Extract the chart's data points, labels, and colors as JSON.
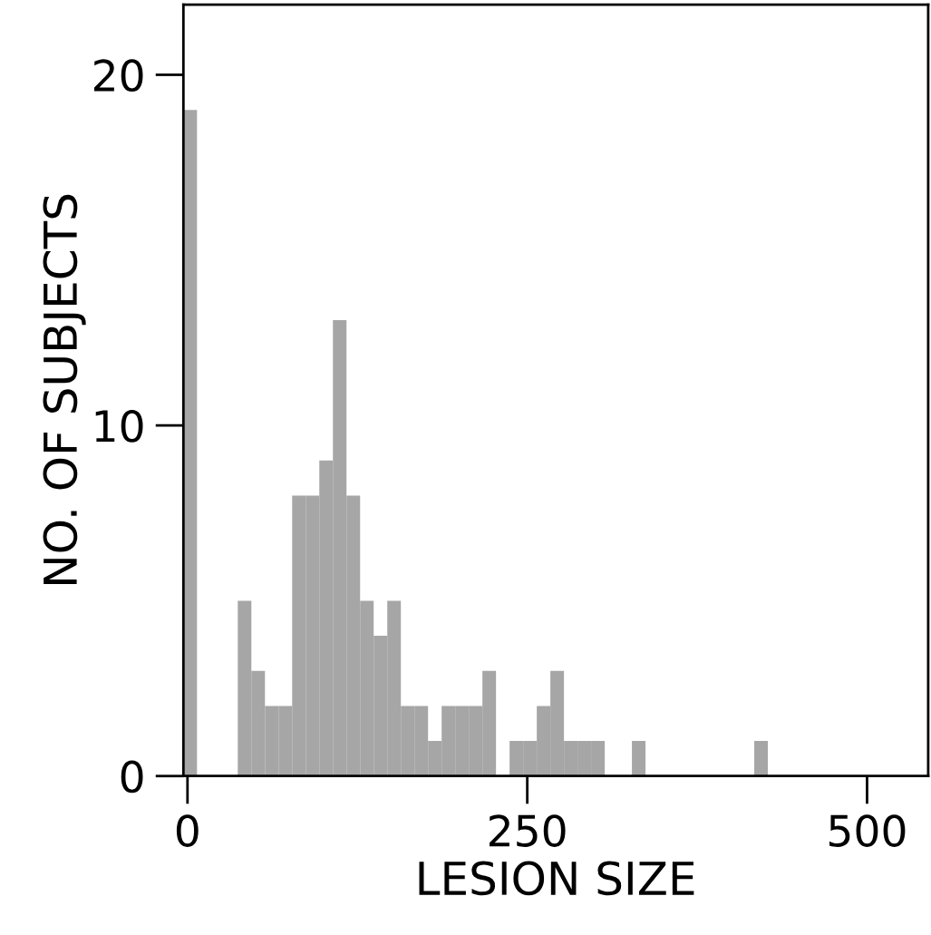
{
  "chart_data": {
    "type": "histogram",
    "xlabel": "LESION SIZE",
    "ylabel": "NO. OF SUBJECTS",
    "bins": [
      -3,
      7,
      17,
      27,
      37,
      47,
      57,
      67,
      77,
      87,
      97,
      107,
      117,
      127,
      137,
      147,
      157,
      167,
      177,
      187,
      197,
      207,
      217,
      227,
      237,
      247,
      257,
      267,
      277,
      287,
      297,
      307,
      317,
      327,
      337,
      347,
      357,
      367,
      377,
      387,
      397,
      407,
      417,
      427
    ],
    "values": [
      19,
      0,
      0,
      0,
      5,
      3,
      2,
      2,
      8,
      8,
      9,
      13,
      8,
      5,
      4,
      5,
      2,
      2,
      1,
      2,
      2,
      2,
      3,
      0,
      1,
      1,
      2,
      3,
      1,
      1,
      1,
      0,
      0,
      1,
      0,
      0,
      0,
      0,
      0,
      0,
      0,
      0,
      1
    ],
    "color": "#a6a6a6",
    "xlim": [
      -3,
      545
    ],
    "ylim": [
      0,
      22
    ],
    "xticks": [
      0,
      250,
      500
    ],
    "yticks": [
      0,
      10,
      20
    ],
    "grid": false
  }
}
